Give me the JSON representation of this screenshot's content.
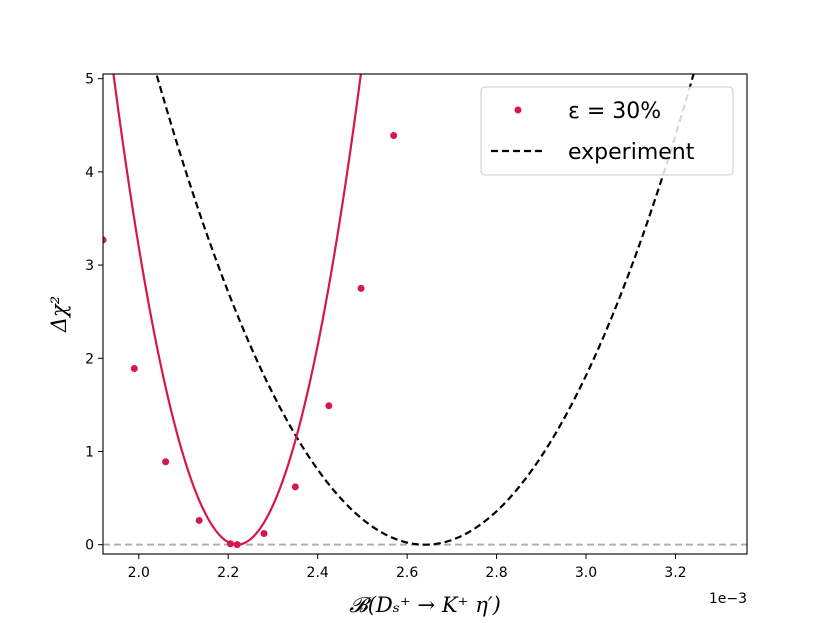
{
  "chart_data": {
    "type": "line",
    "xlabel": "𝓑(Dₛ⁺ → K⁺ η′)",
    "ylabel": "Δχ²",
    "x_offset_label": "1e−3",
    "xlim": [
      1.92,
      3.36
    ],
    "ylim": [
      -0.1,
      5.05
    ],
    "xticks": [
      2.0,
      2.2,
      2.4,
      2.6,
      2.8,
      3.0,
      3.2
    ],
    "xtick_labels": [
      "2.0",
      "2.2",
      "2.4",
      "2.6",
      "2.8",
      "3.0",
      "3.2"
    ],
    "yticks": [
      0,
      1,
      2,
      3,
      4,
      5
    ],
    "ytick_labels": [
      "0",
      "1",
      "2",
      "3",
      "4",
      "5"
    ],
    "grid": false,
    "legend_position": "top-right",
    "reference_line": {
      "y": 0,
      "style": "dashed",
      "color": "#b0b0b0"
    },
    "series": [
      {
        "name": "ε = 30%",
        "kind": "points+fit",
        "color": "#d6174a",
        "points": [
          {
            "x": 1.92,
            "y": 3.27
          },
          {
            "x": 1.99,
            "y": 1.89
          },
          {
            "x": 2.06,
            "y": 0.89
          },
          {
            "x": 2.135,
            "y": 0.26
          },
          {
            "x": 2.205,
            "y": 0.01
          },
          {
            "x": 2.22,
            "y": 0.0
          },
          {
            "x": 2.28,
            "y": 0.12
          },
          {
            "x": 2.35,
            "y": 0.62
          },
          {
            "x": 2.425,
            "y": 1.49
          },
          {
            "x": 2.497,
            "y": 2.75
          },
          {
            "x": 2.57,
            "y": 4.39
          }
        ],
        "fit": {
          "center": 2.22,
          "curvature": 66.0
        }
      },
      {
        "name": "experiment",
        "kind": "dashed-line",
        "color": "#000000",
        "fit": {
          "center": 2.64,
          "curvature": 14.0
        }
      }
    ]
  }
}
